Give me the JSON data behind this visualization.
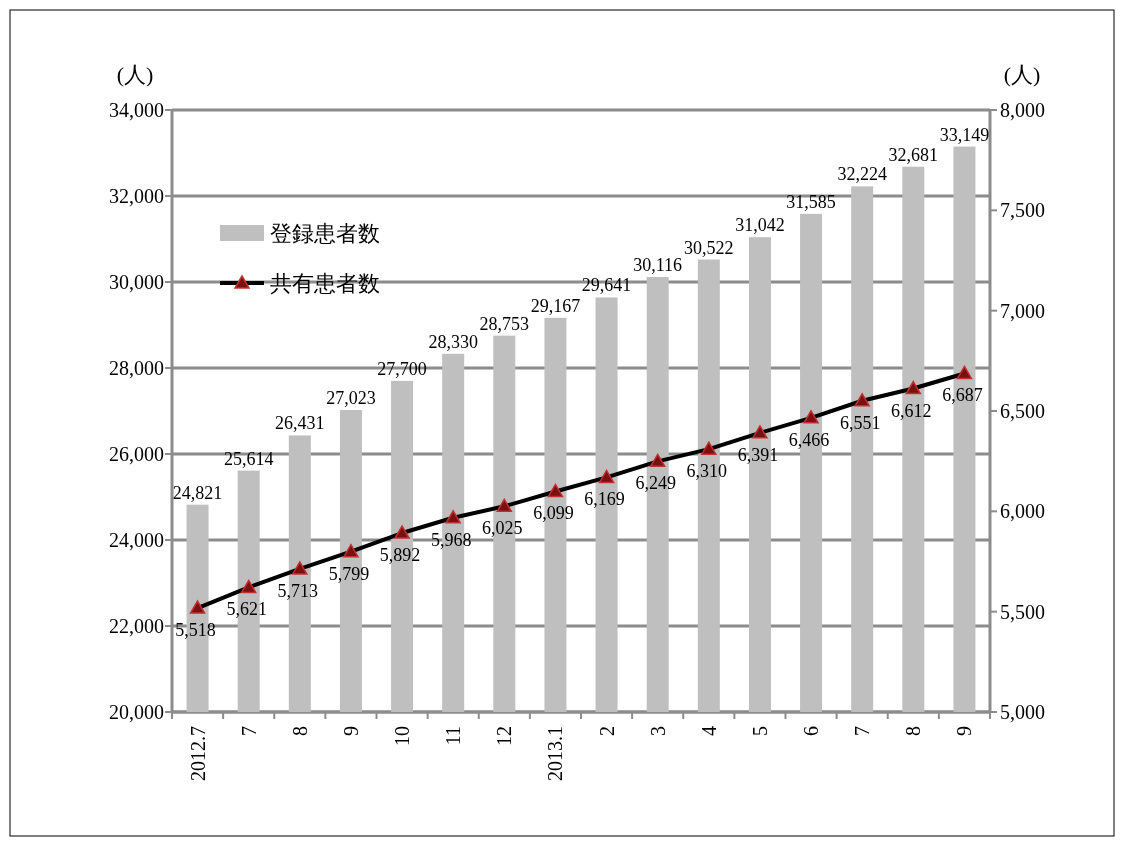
{
  "chart_data": {
    "type": "bar",
    "categories": [
      "2012.7",
      "7",
      "8",
      "9",
      "10",
      "11",
      "12",
      "2013.1",
      "2",
      "3",
      "4",
      "5",
      "6",
      "7",
      "8",
      "9"
    ],
    "ylabel": "(人)",
    "y2label": "(人)",
    "ylim": [
      20000,
      34000
    ],
    "yticks": [
      {
        "value": 20000,
        "label": "20,000"
      },
      {
        "value": 22000,
        "label": "22,000"
      },
      {
        "value": 24000,
        "label": "24,000"
      },
      {
        "value": 26000,
        "label": "26,000"
      },
      {
        "value": 28000,
        "label": "28,000"
      },
      {
        "value": 30000,
        "label": "30,000"
      },
      {
        "value": 32000,
        "label": "32,000"
      },
      {
        "value": 34000,
        "label": "34,000"
      }
    ],
    "y2lim": [
      5000,
      8000
    ],
    "y2ticks": [
      {
        "value": 5000,
        "label": "5,000"
      },
      {
        "value": 5500,
        "label": "5,500"
      },
      {
        "value": 6000,
        "label": "6,000"
      },
      {
        "value": 6500,
        "label": "6,500"
      },
      {
        "value": 7000,
        "label": "7,000"
      },
      {
        "value": 7500,
        "label": "7,500"
      },
      {
        "value": 8000,
        "label": "8,000"
      }
    ],
    "grid": "y",
    "legend": "top left",
    "marker": "triangle",
    "series": [
      {
        "name": "登録患者数",
        "color": "#bfbfbf",
        "values": [
          24821,
          25614,
          26431,
          27023,
          27700,
          28330,
          28753,
          29167,
          29641,
          30116,
          30522,
          31042,
          31585,
          32224,
          32681,
          33149
        ],
        "value_labels": [
          "24,821",
          "25,614",
          "26,431",
          "27,023",
          "27,700",
          "28,330",
          "28,753",
          "29,167",
          "29,641",
          "30,116",
          "30,522",
          "31,042",
          "31,585",
          "32,224",
          "32,681",
          "33,149"
        ]
      },
      {
        "name": "共有患者数",
        "type": "line",
        "axis": "y2",
        "color": "#000000",
        "values": [
          5518,
          5621,
          5713,
          5799,
          5892,
          5968,
          6025,
          6099,
          6169,
          6249,
          6310,
          6391,
          6466,
          6551,
          6612,
          6687
        ],
        "value_labels": [
          "5,518",
          "5,621",
          "5,713",
          "5,799",
          "5,892",
          "5,968",
          "6,025",
          "6,099",
          "6,169",
          "6,249",
          "6,310",
          "6,391",
          "6,466",
          "6,551",
          "6,612",
          "6,687"
        ]
      }
    ]
  }
}
